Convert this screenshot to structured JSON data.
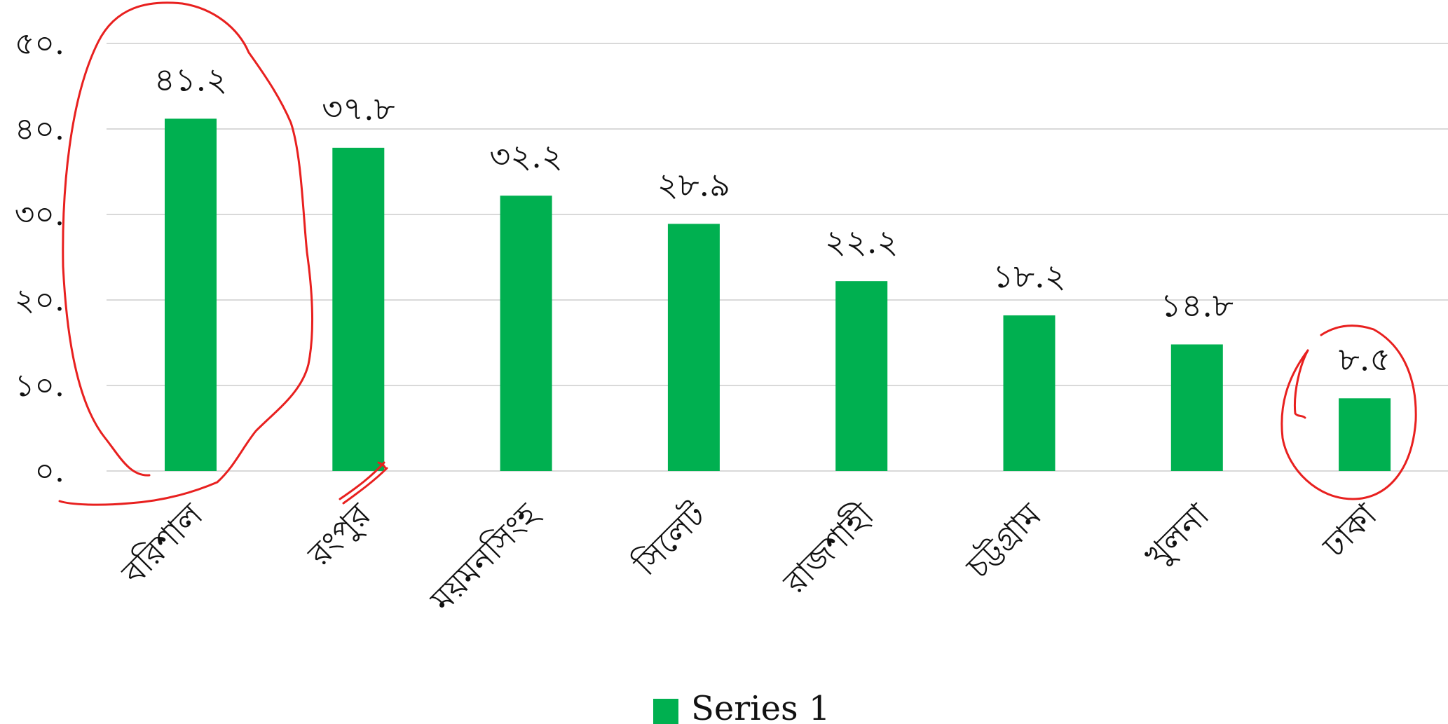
{
  "chart_data": {
    "type": "bar",
    "categories": [
      "বরিশাল",
      "রংপুর",
      "ময়মনসিংহ",
      "সিলেট",
      "রাজশাহী",
      "চট্টগ্রাম",
      "খুলনা",
      "ঢাকা"
    ],
    "series": [
      {
        "name": "Series 1",
        "values": [
          41.2,
          37.8,
          32.2,
          28.9,
          22.2,
          18.2,
          14.8,
          8.5
        ],
        "data_labels": [
          "৪১.২",
          "৩৭.৮",
          "৩২.২",
          "২৮.৯",
          "২২.২",
          "১৮.২",
          "১৪.৮",
          "৮.৫"
        ],
        "color": "#00b050"
      }
    ],
    "ylim": [
      0,
      50
    ],
    "y_ticks": [
      0,
      10,
      20,
      30,
      40,
      50
    ],
    "y_tick_labels": [
      "০.",
      "১০.",
      "২০.",
      "৩০.",
      "৪০.",
      "৫০."
    ],
    "grid": true,
    "legend": "bottom-center",
    "title": "",
    "xlabel": "",
    "ylabel": "",
    "annotation_color": "#e8201f"
  }
}
